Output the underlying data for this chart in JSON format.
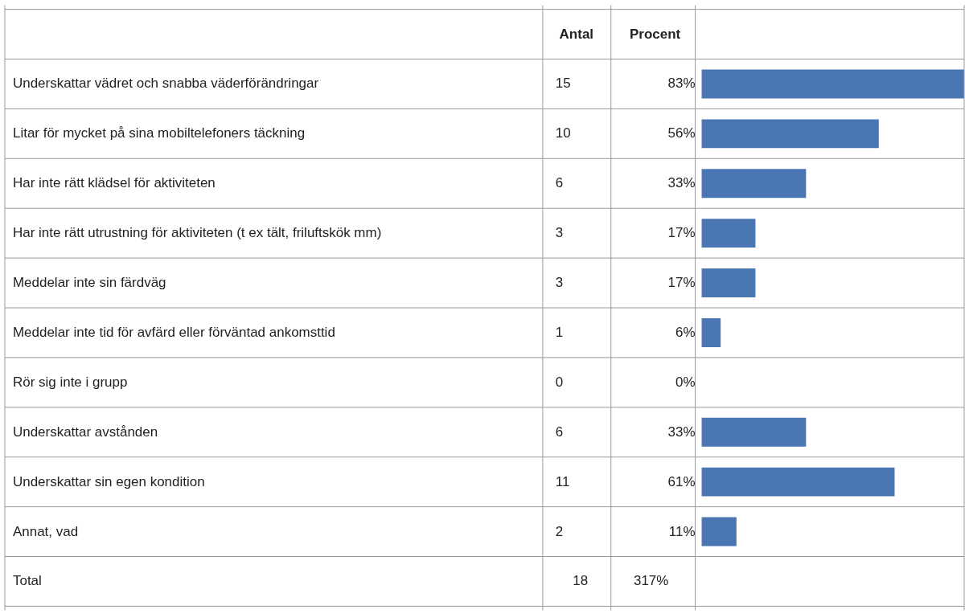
{
  "chart_data": {
    "type": "bar",
    "orientation": "horizontal",
    "color": "#4a76b4",
    "categories": [
      "Underskattar vädret och snabba väderförändringar",
      "Litar för mycket på sina mobiltelefoners täckning",
      "Har inte rätt klädsel för aktiviteten",
      "Har inte rätt utrustning för aktiviteten (t ex tält, friluftskök mm)",
      "Meddelar inte sin färdväg",
      "Meddelar inte tid för avfärd eller förväntad ankomsttid",
      "Rör sig inte i grupp",
      "Underskattar avstånden",
      "Underskattar sin egen kondition",
      "Annat, vad"
    ],
    "values": [
      83,
      56,
      33,
      17,
      17,
      6,
      0,
      33,
      61,
      11
    ],
    "value_labels": [
      "83%",
      "56%",
      "33%",
      "17%",
      "17%",
      "6%",
      "0%",
      "33%",
      "61%",
      "11%"
    ],
    "annotations": [
      "Antal",
      "Procent",
      "Total",
      "18",
      "317%",
      "15",
      "10",
      "6",
      "3",
      "3",
      "1",
      "0",
      "6",
      "11",
      "2"
    ]
  }
}
